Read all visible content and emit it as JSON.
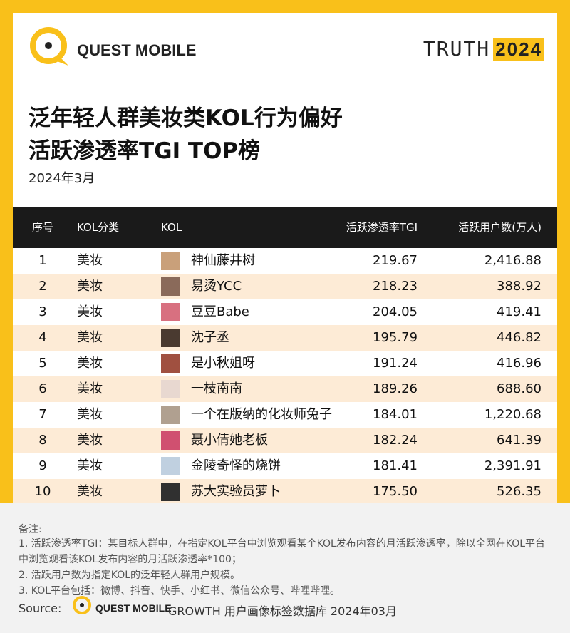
{
  "header": {
    "brand": "QUEST MOBILE",
    "badge_word": "TRUTH",
    "badge_year": "2024",
    "title_line1": "泛年轻人群美妆类KOL行为偏好",
    "title_line2": "活跃渗透率TGI TOP榜",
    "date": "2024年3月"
  },
  "table": {
    "columns": [
      "序号",
      "KOL分类",
      "KOL",
      "活跃渗透率TGI",
      "活跃用户数(万人)"
    ],
    "rows": [
      [
        1,
        "美妆",
        "神仙藤井树",
        "219.67",
        "2,416.88"
      ],
      [
        2,
        "美妆",
        "易烫YCC",
        "218.23",
        "388.92"
      ],
      [
        3,
        "美妆",
        "豆豆Babe",
        "204.05",
        "419.41"
      ],
      [
        4,
        "美妆",
        "沈子丞",
        "195.79",
        "446.82"
      ],
      [
        5,
        "美妆",
        "是小秋姐呀",
        "191.24",
        "416.96"
      ],
      [
        6,
        "美妆",
        "一枝南南",
        "189.26",
        "688.60"
      ],
      [
        7,
        "美妆",
        "一个在版纳的化妆师兔子",
        "184.01",
        "1,220.68"
      ],
      [
        8,
        "美妆",
        "聂小倩她老板",
        "182.24",
        "641.39"
      ],
      [
        9,
        "美妆",
        "金陵奇怪的烧饼",
        "181.41",
        "2,391.91"
      ],
      [
        10,
        "美妆",
        "苏大实验员萝卜",
        "175.50",
        "526.35"
      ]
    ]
  },
  "notes": {
    "heading": "备注:",
    "items": [
      "1. 活跃渗透率TGI：某目标人群中，在指定KOL平台中浏览观看某个KOL发布内容的月活跃渗透率，除以全网在KOL平台中浏览观看该KOL发布内容的月活跃渗透率*100；",
      "2. 活跃用户数为指定KOL的泛年轻人群用户规模。",
      "3. KOL平台包括：微博、抖音、快手、小红书、微信公众号、哔哩哔哩。"
    ]
  },
  "source": {
    "label": "Source:",
    "brand": "QUEST MOBILE",
    "text": "GROWTH 用户画像标签数据库 2024年03月"
  }
}
